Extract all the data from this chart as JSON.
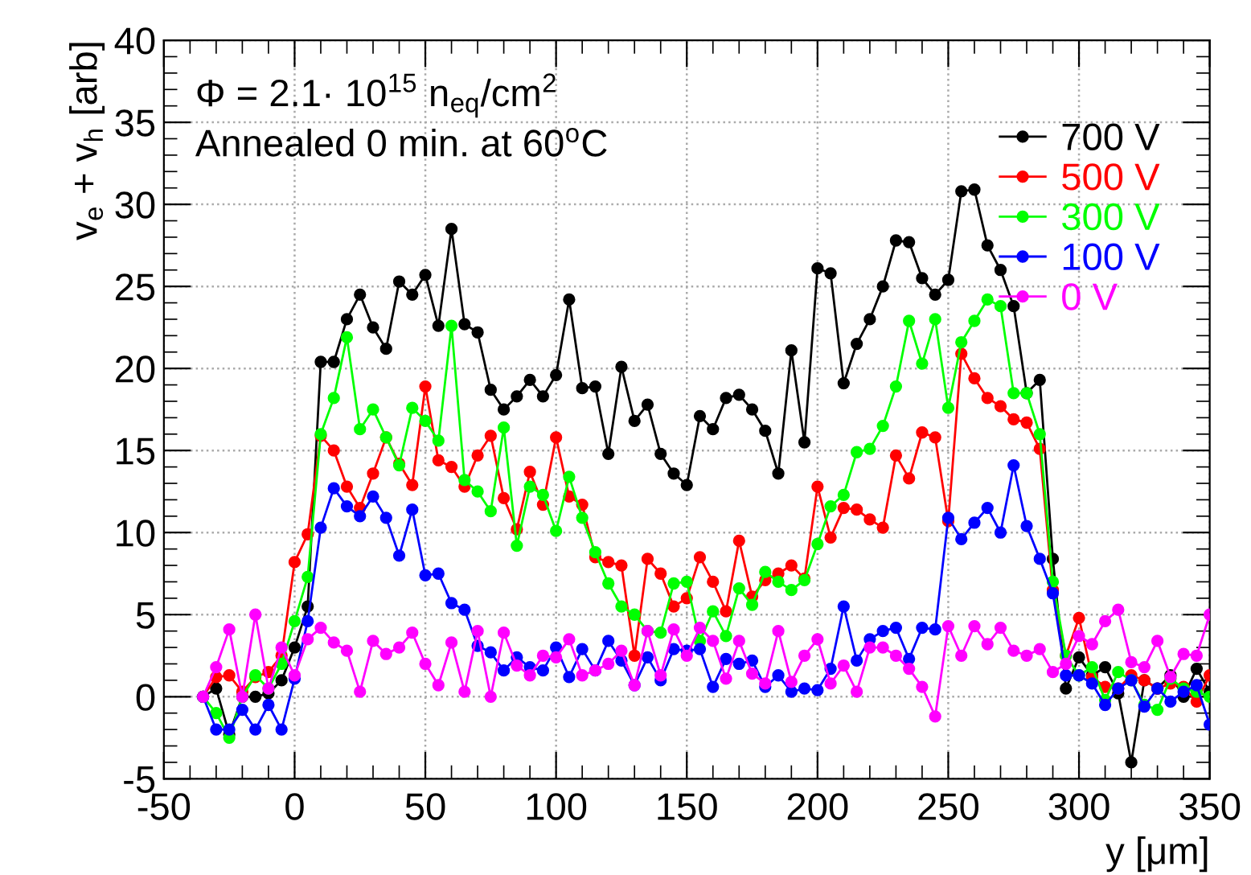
{
  "chart_data": {
    "type": "line",
    "xlabel": "y [μm]",
    "ylabel": "v$_{e}$ + v$_{h}$ [arb]",
    "annotations": [
      "Φ = 2.1· 10$^{15}$ n$_{eq}$/cm$^{2}$",
      "Annealed 0 min. at 60$^{o}$C"
    ],
    "x": [
      -35,
      -30,
      -25,
      -20,
      -15,
      -10,
      -5,
      0,
      5,
      10,
      15,
      20,
      25,
      30,
      35,
      40,
      45,
      50,
      55,
      60,
      65,
      70,
      75,
      80,
      85,
      90,
      95,
      100,
      105,
      110,
      115,
      120,
      125,
      130,
      135,
      140,
      145,
      150,
      155,
      160,
      165,
      170,
      175,
      180,
      185,
      190,
      195,
      200,
      205,
      210,
      215,
      220,
      225,
      230,
      235,
      240,
      245,
      250,
      255,
      260,
      265,
      270,
      275,
      280,
      285,
      290,
      295,
      300,
      305,
      310,
      315,
      320,
      325,
      330,
      335,
      340,
      345,
      350
    ],
    "series": [
      {
        "name": "700 V",
        "color": "#000000",
        "values": [
          0,
          0.5,
          -2.3,
          0,
          0,
          0.2,
          1,
          3,
          5.5,
          20.4,
          20.4,
          23,
          24.5,
          22.5,
          21.2,
          25.3,
          24.5,
          25.7,
          22.6,
          28.5,
          22.7,
          22.2,
          18.7,
          17.5,
          18.3,
          19.3,
          18.3,
          19.6,
          24.2,
          18.8,
          18.9,
          14.8,
          20.1,
          16.8,
          17.8,
          14.8,
          13.6,
          12.9,
          17.1,
          16.3,
          18.2,
          18.4,
          17.5,
          16.2,
          13.6,
          21.1,
          15.5,
          26.1,
          25.8,
          19.1,
          21.5,
          23,
          25,
          27.8,
          27.7,
          25.5,
          24.5,
          25.4,
          30.8,
          30.9,
          27.5,
          26.0,
          23.8,
          18.5,
          19.3,
          8.4,
          0.5,
          2.4,
          1.3,
          1.8,
          0.2,
          -4,
          1,
          0.5,
          1.3,
          0,
          1.7,
          0.3
        ]
      },
      {
        "name": "500 V",
        "color": "#ff0000",
        "values": [
          0,
          1.2,
          1.3,
          0.3,
          1.2,
          1.5,
          2.5,
          8.2,
          9.9,
          15.9,
          15,
          12.8,
          11.5,
          13.6,
          15.8,
          14.2,
          12.9,
          18.9,
          14.4,
          14,
          12.8,
          14.7,
          15.9,
          12.1,
          10.2,
          13.7,
          11.7,
          15.8,
          12.2,
          11.7,
          8.5,
          8.2,
          8,
          2.5,
          8.4,
          7.5,
          5.5,
          6,
          8.5,
          7,
          5.2,
          9.5,
          6.1,
          7.1,
          7.5,
          8,
          7.2,
          12.8,
          9.7,
          11.5,
          11.4,
          10.8,
          10.3,
          14.7,
          13.3,
          16.1,
          15.8,
          10.7,
          20.9,
          19.4,
          18.2,
          17.7,
          16.9,
          16.7,
          15.1,
          6.5,
          2.5,
          4.8,
          1.2,
          0.6,
          0.5,
          1.3,
          1.0,
          0.5,
          0.8,
          0.6,
          -0.3,
          1.3
        ]
      },
      {
        "name": "300 V",
        "color": "#00ff00",
        "values": [
          0,
          -1,
          -2.5,
          0,
          1.3,
          0.5,
          2,
          4.6,
          7.3,
          16,
          18.2,
          21.9,
          16.3,
          17.5,
          15.8,
          14.1,
          17.6,
          16.8,
          15.6,
          22.6,
          13.2,
          12.5,
          11.3,
          16.4,
          9.2,
          12.8,
          12.3,
          10.1,
          13.4,
          10.9,
          8.8,
          6.9,
          5.5,
          5,
          4,
          3.9,
          6.9,
          7,
          3.4,
          5.2,
          3.7,
          6.6,
          5.6,
          7.6,
          7,
          6.5,
          7.1,
          9.3,
          11.6,
          12.3,
          14.9,
          15.1,
          16.5,
          18.9,
          22.9,
          20.3,
          23,
          17.6,
          21.6,
          22.9,
          24.2,
          23.8,
          18.5,
          18.5,
          16,
          7,
          2.5,
          1.3,
          1.8,
          -0.2,
          1.5,
          1.0,
          -0.5,
          -0.8,
          1.1,
          0.5,
          0.3,
          0
        ]
      },
      {
        "name": "100 V",
        "color": "#0000ff",
        "values": [
          0,
          -2,
          -2,
          -0.8,
          -2,
          -0.5,
          -2,
          1.1,
          4.6,
          10.3,
          12.7,
          11.6,
          11.0,
          12.2,
          10.9,
          8.6,
          11.4,
          7.4,
          7.5,
          5.7,
          5.3,
          3.1,
          2.7,
          1.6,
          2.4,
          1.8,
          1.6,
          3.0,
          1.2,
          2.9,
          1.6,
          3.4,
          2.2,
          0.7,
          2.4,
          1.0,
          2.9,
          2.8,
          2.9,
          0.6,
          2.3,
          2,
          2.2,
          0.6,
          1.3,
          0.3,
          0.5,
          0.4,
          1.7,
          5.5,
          2.2,
          3.5,
          4.0,
          4.2,
          2.3,
          4.2,
          4.1,
          10.9,
          9.6,
          10.6,
          11.5,
          10,
          14.1,
          10.4,
          8.4,
          6.3,
          1.3,
          1.3,
          0.8,
          -0.5,
          0.5,
          1.0,
          -0.6,
          0.5,
          -0.3,
          0.3,
          0.7,
          -1.7
        ]
      },
      {
        "name": "0 V",
        "color": "#ff00ff",
        "values": [
          0,
          1.8,
          4.1,
          0,
          5.0,
          0.5,
          3.0,
          1.3,
          3.5,
          4.2,
          3.3,
          2.8,
          0.3,
          3.4,
          2.6,
          3.0,
          3.9,
          2.0,
          0.7,
          3.3,
          0.3,
          4.0,
          0,
          3.9,
          1.9,
          1.3,
          2.5,
          2.4,
          3.5,
          1.3,
          1.6,
          2.0,
          2.8,
          0.7,
          4.0,
          1.3,
          4.1,
          2.5,
          4.2,
          3.4,
          1.1,
          3.4,
          1.4,
          0.8,
          4.0,
          0.9,
          2.5,
          3.5,
          0.8,
          1.9,
          0.3,
          3.0,
          3.0,
          2.5,
          1.7,
          0.6,
          -1.2,
          4.3,
          2.5,
          4.3,
          3.2,
          4.2,
          2.8,
          2.5,
          2.9,
          1.5,
          2.0,
          3.7,
          3.2,
          4.6,
          5.3,
          2.1,
          1.8,
          3.4,
          1.2,
          2.6,
          2.5,
          5
        ]
      }
    ],
    "xlim": [
      -50,
      350
    ],
    "xticks": [
      -50,
      0,
      50,
      100,
      150,
      200,
      250,
      300,
      350
    ],
    "ylim": [
      -5,
      40
    ],
    "yticks": [
      -5,
      0,
      5,
      10,
      15,
      20,
      25,
      30,
      35,
      40
    ],
    "grid": true,
    "legend": "top right",
    "marker": "circle",
    "line_style": "solid"
  }
}
